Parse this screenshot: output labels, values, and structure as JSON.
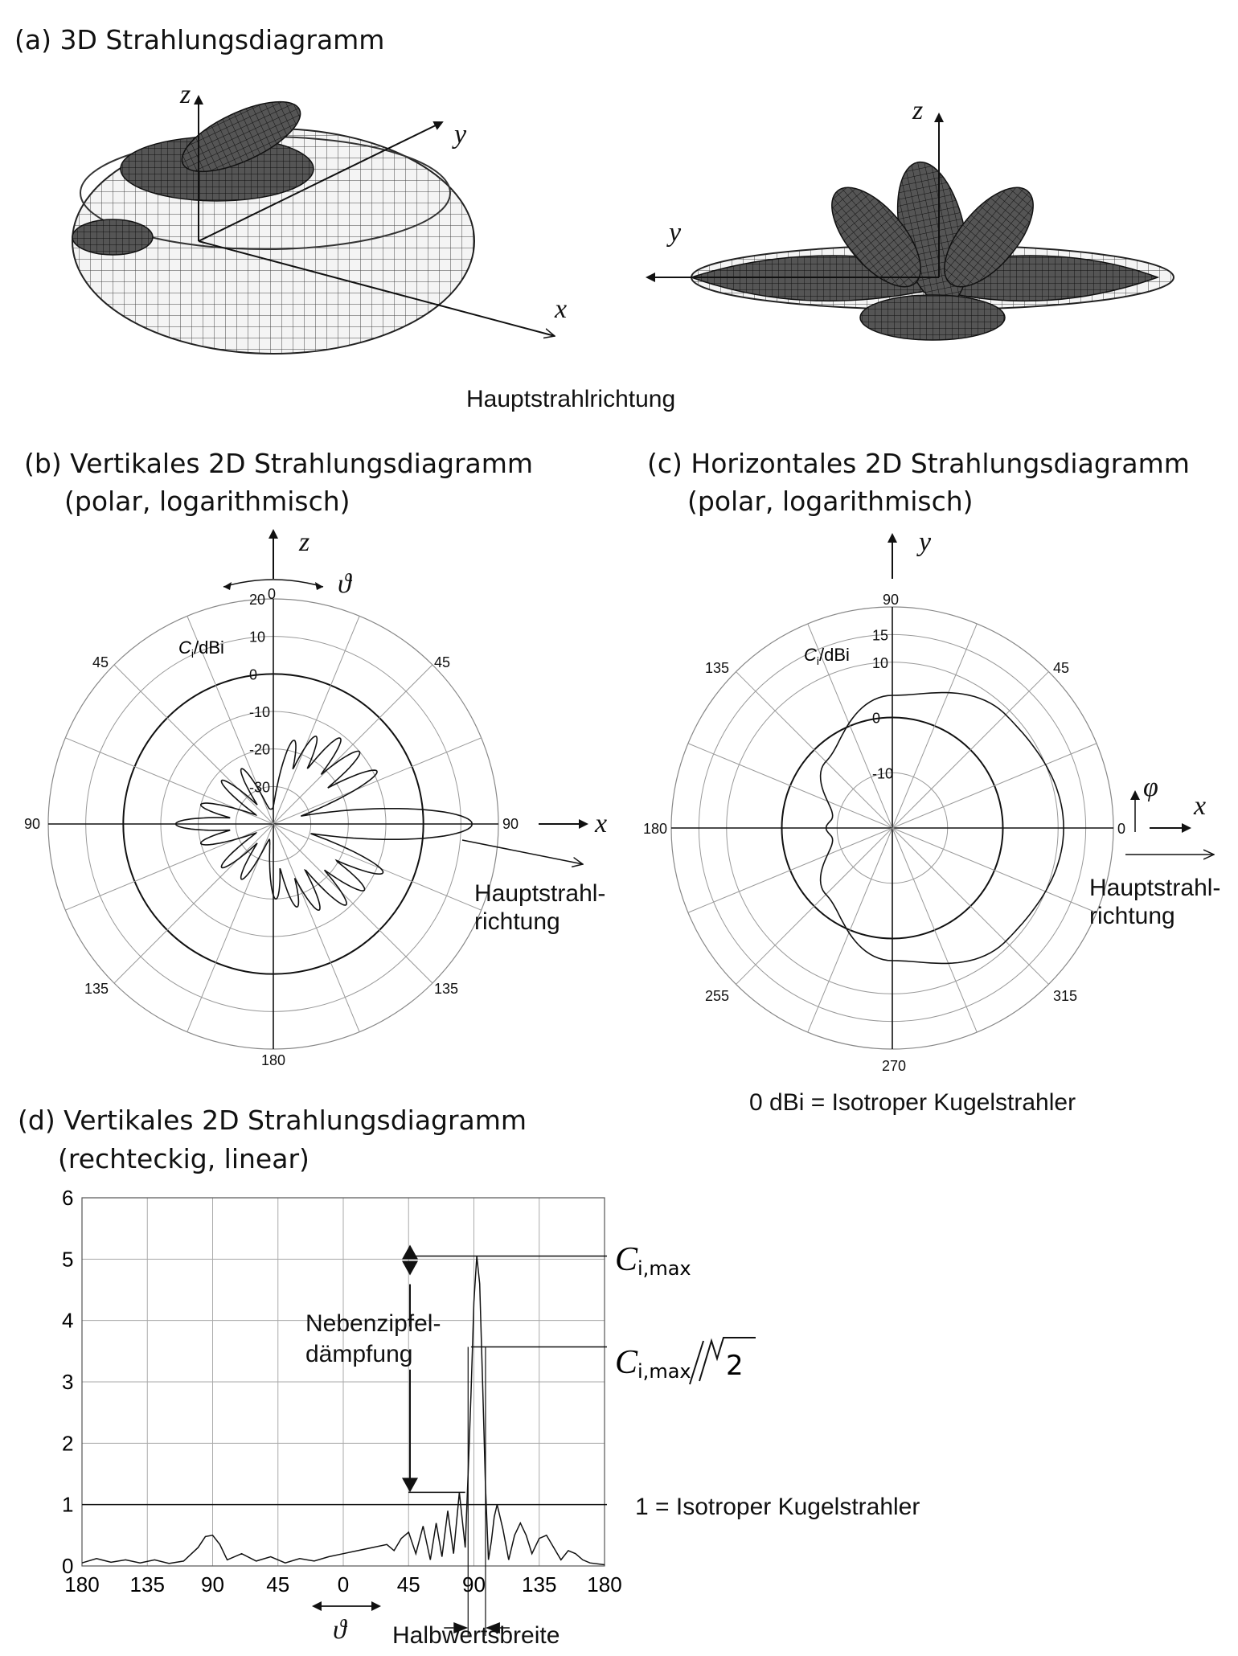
{
  "panel_a": {
    "title": "(a) 3D Strahlungsdiagramm",
    "axis_z_left": "z",
    "axis_y_left": "y",
    "axis_x_left": "x",
    "axis_z_right": "z",
    "axis_y_right": "y",
    "main_direction_label": "Hauptstrahlrichtung"
  },
  "panel_b": {
    "title_line1": "(b) Vertikales 2D Strahlungsdiagramm",
    "title_line2": "(polar, logarithmisch)",
    "axis_z": "z",
    "axis_x": "x",
    "angle_symbol": "ϑ",
    "unit_main": "C",
    "unit_sub": "i",
    "unit_rest": "/dBi",
    "angle_top": "0",
    "angle_45_left": "45",
    "angle_45_right": "45",
    "angle_90_left": "90",
    "angle_90_right": "90",
    "angle_135_left": "135",
    "angle_135_right": "135",
    "angle_bottom": "180",
    "main_dir_line1": "Hauptstrahl-",
    "main_dir_line2": "richtung"
  },
  "panel_c": {
    "title_line1": "(c) Horizontales 2D Strahlungsdiagramm",
    "title_line2": "(polar, logarithmisch)",
    "axis_y": "y",
    "axis_x": "x",
    "angle_symbol": "φ",
    "unit_main": "C",
    "unit_sub": "i",
    "unit_rest": "/dBi",
    "angle_top": "90",
    "angle_45": "45",
    "angle_135": "135",
    "angle_180": "180",
    "angle_0": "0",
    "angle_255": "255",
    "angle_315": "315",
    "angle_bottom": "270",
    "main_dir_line1": "Hauptstrahl-",
    "main_dir_line2": "richtung",
    "isotropic_note": "0 dBi = Isotroper Kugelstrahler"
  },
  "panel_d": {
    "title_line1": "(d) Vertikales 2D Strahlungsdiagramm",
    "title_line2": "(rechteckig, linear)",
    "cmax_main": "C",
    "cmax_sub": "i,max",
    "cmax_sqrt_main": "C",
    "cmax_sqrt_sub": "i,max",
    "sqrt_2": "2",
    "sidelobe_line1": "Nebenzipfel-",
    "sidelobe_line2": "dämpfung",
    "isotropic_label": "1 = Isotroper Kugelstrahler",
    "hpbw_label": "Halbwertsbreite",
    "angle_symbol": "ϑ"
  },
  "chart_data": [
    {
      "type": "polar",
      "title": "(b) Vertikales 2D Strahlungsdiagramm (polar, logarithmisch)",
      "radial_unit": "Ci/dBi",
      "radial_ticks": [
        20,
        10,
        0,
        -10,
        -20,
        -30
      ],
      "rlim": [
        -40,
        20
      ],
      "angle_ticks": [
        "0",
        "45",
        "90",
        "135",
        "180",
        "135",
        "90",
        "45"
      ],
      "lobes": [
        {
          "angle_deg": 90,
          "value_dbi": 13
        },
        {
          "angle_deg": 63,
          "value_dbi": -9
        },
        {
          "angle_deg": 50,
          "value_dbi": -10
        },
        {
          "angle_deg": 38,
          "value_dbi": -11
        },
        {
          "angle_deg": 26,
          "value_dbi": -14
        },
        {
          "angle_deg": 14,
          "value_dbi": -17
        },
        {
          "angle_deg": 114,
          "value_dbi": -8
        },
        {
          "angle_deg": 126,
          "value_dbi": -10
        },
        {
          "angle_deg": 138,
          "value_dbi": -11
        },
        {
          "angle_deg": 152,
          "value_dbi": -14
        },
        {
          "angle_deg": 164,
          "value_dbi": -17
        },
        {
          "angle_deg": 178,
          "value_dbi": -20
        },
        {
          "angle_deg": -90,
          "value_dbi": -14
        },
        {
          "angle_deg": -75,
          "value_dbi": -20
        },
        {
          "angle_deg": -105,
          "value_dbi": -20
        },
        {
          "angle_deg": -50,
          "value_dbi": -22
        },
        {
          "angle_deg": -30,
          "value_dbi": -23
        },
        {
          "angle_deg": -130,
          "value_dbi": -22
        },
        {
          "angle_deg": -150,
          "value_dbi": -23
        }
      ]
    },
    {
      "type": "polar",
      "title": "(c) Horizontales 2D Strahlungsdiagramm (polar, logarithmisch)",
      "radial_unit": "Ci/dBi",
      "radial_ticks": [
        15,
        10,
        0,
        -10
      ],
      "rlim": [
        -20,
        20
      ],
      "angle_ticks": [
        "90",
        "45",
        "0",
        "315",
        "270",
        "255",
        "180",
        "135"
      ],
      "pattern": [
        {
          "phi_deg": 0,
          "value_dbi": 11
        },
        {
          "phi_deg": 45,
          "value_dbi": 9
        },
        {
          "phi_deg": 90,
          "value_dbi": 4
        },
        {
          "phi_deg": 135,
          "value_dbi": -3
        },
        {
          "phi_deg": 170,
          "value_dbi": -9
        },
        {
          "phi_deg": 180,
          "value_dbi": -8
        },
        {
          "phi_deg": 190,
          "value_dbi": -9
        },
        {
          "phi_deg": 225,
          "value_dbi": -3
        },
        {
          "phi_deg": 270,
          "value_dbi": 4
        },
        {
          "phi_deg": 315,
          "value_dbi": 9
        }
      ]
    },
    {
      "type": "line",
      "title": "(d) Vertikales 2D Strahlungsdiagramm (rechteckig, linear)",
      "x_tick_labels": [
        "180",
        "135",
        "90",
        "45",
        "0",
        "45",
        "90",
        "135",
        "180"
      ],
      "x_tick_positions": [
        -180,
        -135,
        -90,
        -45,
        0,
        45,
        90,
        135,
        180
      ],
      "ylim": [
        0,
        6
      ],
      "y_ticks": [
        0,
        1,
        2,
        3,
        4,
        5,
        6
      ],
      "grid": true,
      "series": [
        {
          "name": "Ci",
          "x": [
            -180,
            -170,
            -160,
            -150,
            -140,
            -130,
            -120,
            -110,
            -100,
            -95,
            -90,
            -85,
            -80,
            -70,
            -60,
            -50,
            -40,
            -30,
            -20,
            -10,
            0,
            10,
            20,
            30,
            35,
            40,
            45,
            50,
            55,
            60,
            64,
            68,
            72,
            76,
            80,
            84,
            86,
            88,
            90,
            92,
            94,
            96,
            98,
            100,
            102,
            104,
            106,
            110,
            114,
            118,
            122,
            126,
            130,
            135,
            140,
            145,
            150,
            155,
            160,
            165,
            170,
            180
          ],
          "y": [
            0.05,
            0.12,
            0.06,
            0.1,
            0.05,
            0.1,
            0.04,
            0.08,
            0.3,
            0.48,
            0.5,
            0.35,
            0.1,
            0.2,
            0.08,
            0.15,
            0.05,
            0.12,
            0.08,
            0.15,
            0.2,
            0.25,
            0.3,
            0.35,
            0.25,
            0.45,
            0.55,
            0.2,
            0.65,
            0.1,
            0.7,
            0.15,
            0.9,
            0.2,
            1.2,
            0.3,
            1.5,
            2.8,
            4.3,
            5.05,
            4.6,
            3.0,
            1.3,
            0.1,
            0.4,
            0.8,
            1.0,
            0.6,
            0.1,
            0.5,
            0.7,
            0.5,
            0.2,
            0.45,
            0.5,
            0.3,
            0.1,
            0.25,
            0.2,
            0.1,
            0.05,
            0.02
          ]
        }
      ],
      "annotations": {
        "ci_max": 5.05,
        "ci_max_over_sqrt2": 3.57,
        "isotropic_level": 1,
        "sidelobe_level": 1.2
      }
    }
  ]
}
